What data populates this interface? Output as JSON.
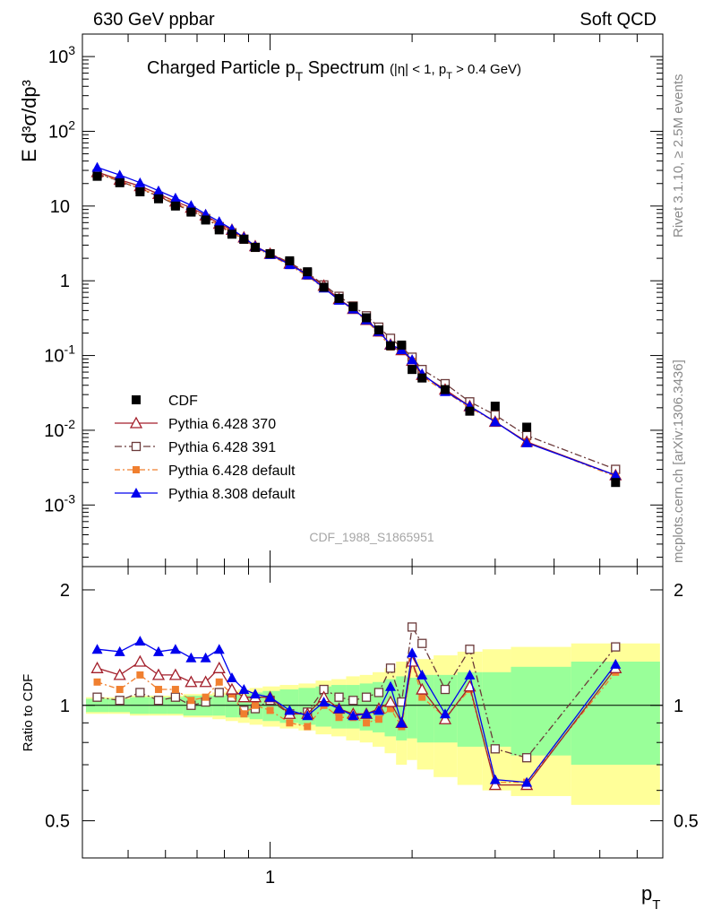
{
  "header": {
    "left": "630 GeV ppbar",
    "right": "Soft QCD"
  },
  "title": {
    "main": "Charged Particle p",
    "main_sub": "T",
    "main_tail": " Spectrum",
    "cuts": "(|η| < 1, p",
    "cuts_sub": "T",
    "cuts_tail": " > 0.4 GeV)"
  },
  "side_labels": {
    "rivet": "Rivet 3.1.10, ≥ 2.5M events",
    "mcplots": "mcplots.cern.ch [arXiv:1306.3436]"
  },
  "analysis_id": "CDF_1988_S1865951",
  "axes": {
    "main_ylabel": "E d³σ/dp³",
    "ratio_ylabel": "Ratio to CDF",
    "xlabel": "p",
    "xlabel_sub": "T",
    "main_yticks": [
      {
        "base": "10",
        "exp": "-3"
      },
      {
        "base": "10",
        "exp": "-2"
      },
      {
        "base": "10",
        "exp": "-1"
      },
      {
        "base": "1",
        "exp": ""
      },
      {
        "base": "10",
        "exp": ""
      },
      {
        "base": "10",
        "exp": "2"
      },
      {
        "base": "10",
        "exp": "3"
      }
    ],
    "ratio_yticks": [
      "0.5",
      "1",
      "2"
    ],
    "xticks": [
      "1"
    ]
  },
  "legend": [
    {
      "label": "CDF"
    },
    {
      "label": "Pythia 6.428 370"
    },
    {
      "label": "Pythia 6.428 391"
    },
    {
      "label": "Pythia 6.428 default"
    },
    {
      "label": "Pythia 8.308 default"
    }
  ],
  "chart_data": {
    "type": "scatter",
    "xscale": "log",
    "yscale": "log",
    "xlim": [
      0.4,
      6.8
    ],
    "ylim": [
      0.00015,
      2000
    ],
    "ratio_ylim": [
      0.4,
      2.3
    ],
    "x": [
      0.43,
      0.48,
      0.53,
      0.58,
      0.63,
      0.68,
      0.73,
      0.78,
      0.83,
      0.88,
      0.93,
      1.0,
      1.1,
      1.2,
      1.3,
      1.4,
      1.5,
      1.6,
      1.7,
      1.8,
      1.9,
      2.0,
      2.1,
      2.35,
      2.65,
      3.0,
      3.5,
      5.4
    ],
    "series": [
      {
        "name": "CDF",
        "colour": "#000000",
        "values": [
          25,
          20.5,
          15.5,
          12.5,
          10,
          8.3,
          6.5,
          4.8,
          4.2,
          3.6,
          2.8,
          2.3,
          1.85,
          1.32,
          0.82,
          0.58,
          0.45,
          0.32,
          0.22,
          0.135,
          0.138,
          0.065,
          0.05,
          0.035,
          0.018,
          0.021,
          0.011,
          0.002
        ],
        "ratio": [
          1,
          1,
          1,
          1,
          1,
          1,
          1,
          1,
          1,
          1,
          1,
          1,
          1,
          1,
          1,
          1,
          1,
          1,
          1,
          1,
          1,
          1,
          1,
          1,
          1,
          1,
          1,
          1
        ],
        "band_inner": [
          0.04,
          0.04,
          0.05,
          0.05,
          0.05,
          0.06,
          0.06,
          0.06,
          0.07,
          0.07,
          0.08,
          0.09,
          0.1,
          0.11,
          0.12,
          0.13,
          0.13,
          0.14,
          0.15,
          0.17,
          0.19,
          0.18,
          0.2,
          0.2,
          0.22,
          0.22,
          0.26,
          0.3
        ],
        "band_outer": [
          0.05,
          0.05,
          0.06,
          0.06,
          0.06,
          0.07,
          0.07,
          0.08,
          0.09,
          0.1,
          0.11,
          0.12,
          0.13,
          0.14,
          0.16,
          0.17,
          0.19,
          0.2,
          0.22,
          0.25,
          0.3,
          0.28,
          0.32,
          0.35,
          0.38,
          0.4,
          0.42,
          0.45
        ]
      },
      {
        "name": "Pythia 6.428 370",
        "colour": "#a31f2b",
        "values": [
          28.5,
          22.5,
          18.5,
          14.5,
          11.5,
          9.5,
          7.5,
          5.8,
          4.8,
          3.8,
          2.9,
          2.3,
          1.7,
          1.22,
          0.86,
          0.57,
          0.42,
          0.3,
          0.21,
          0.14,
          0.118,
          0.085,
          0.055,
          0.035,
          0.021,
          0.013,
          0.007,
          0.0025
        ],
        "ratio": [
          1.25,
          1.2,
          1.3,
          1.2,
          1.2,
          1.15,
          1.15,
          1.25,
          1.1,
          1.05,
          1.05,
          1.05,
          0.95,
          0.95,
          1.05,
          0.98,
          0.95,
          0.95,
          0.98,
          1.02,
          0.9,
          1.3,
          1.1,
          0.92,
          1.12,
          0.62,
          0.62,
          1.25
        ]
      },
      {
        "name": "Pythia 6.428 391",
        "colour": "#6b3a3a",
        "values": [
          27,
          21.5,
          17,
          13.5,
          10.5,
          8.6,
          6.8,
          5.3,
          4.4,
          3.6,
          2.8,
          2.3,
          1.75,
          1.27,
          0.88,
          0.62,
          0.46,
          0.34,
          0.24,
          0.17,
          0.13,
          0.095,
          0.065,
          0.042,
          0.024,
          0.016,
          0.0085,
          0.003
        ],
        "ratio": [
          1.05,
          1.03,
          1.08,
          1.03,
          1.05,
          1.0,
          1.02,
          1.08,
          1.05,
          0.97,
          0.98,
          1.03,
          0.95,
          0.96,
          1.1,
          1.05,
          1.03,
          1.05,
          1.08,
          1.25,
          1.02,
          1.6,
          1.45,
          1.1,
          1.4,
          0.77,
          0.73,
          1.42
        ]
      },
      {
        "name": "Pythia 6.428 default",
        "colour": "#f07f2f",
        "values": [
          27.5,
          21.8,
          17.2,
          13.8,
          10.8,
          8.8,
          7.0,
          5.5,
          4.5,
          3.6,
          2.8,
          2.2,
          1.6,
          1.15,
          0.8,
          0.55,
          0.41,
          0.29,
          0.2,
          0.13,
          0.12,
          0.084,
          0.052,
          0.033,
          0.02,
          0.013,
          0.007,
          0.0024
        ],
        "ratio": [
          1.15,
          1.1,
          1.2,
          1.1,
          1.1,
          1.03,
          1.05,
          1.15,
          1.07,
          0.95,
          1.0,
          0.97,
          0.9,
          0.88,
          1.0,
          0.93,
          0.93,
          0.9,
          0.92,
          0.98,
          0.88,
          1.3,
          1.05,
          0.93,
          1.1,
          0.63,
          0.63,
          1.22
        ]
      },
      {
        "name": "Pythia 8.308 default",
        "colour": "#0000ee",
        "values": [
          33,
          26,
          20.5,
          16,
          12.8,
          10.2,
          7.8,
          6.2,
          4.9,
          3.8,
          2.9,
          2.25,
          1.65,
          1.2,
          0.8,
          0.55,
          0.42,
          0.3,
          0.21,
          0.14,
          0.12,
          0.088,
          0.057,
          0.033,
          0.021,
          0.013,
          0.0068,
          0.0025
        ],
        "ratio": [
          1.4,
          1.38,
          1.47,
          1.38,
          1.4,
          1.33,
          1.33,
          1.4,
          1.18,
          1.1,
          1.07,
          1.05,
          0.97,
          0.94,
          1.02,
          0.98,
          0.94,
          0.95,
          0.97,
          1.12,
          0.9,
          1.37,
          1.2,
          0.95,
          1.2,
          0.64,
          0.63,
          1.28
        ]
      }
    ]
  }
}
